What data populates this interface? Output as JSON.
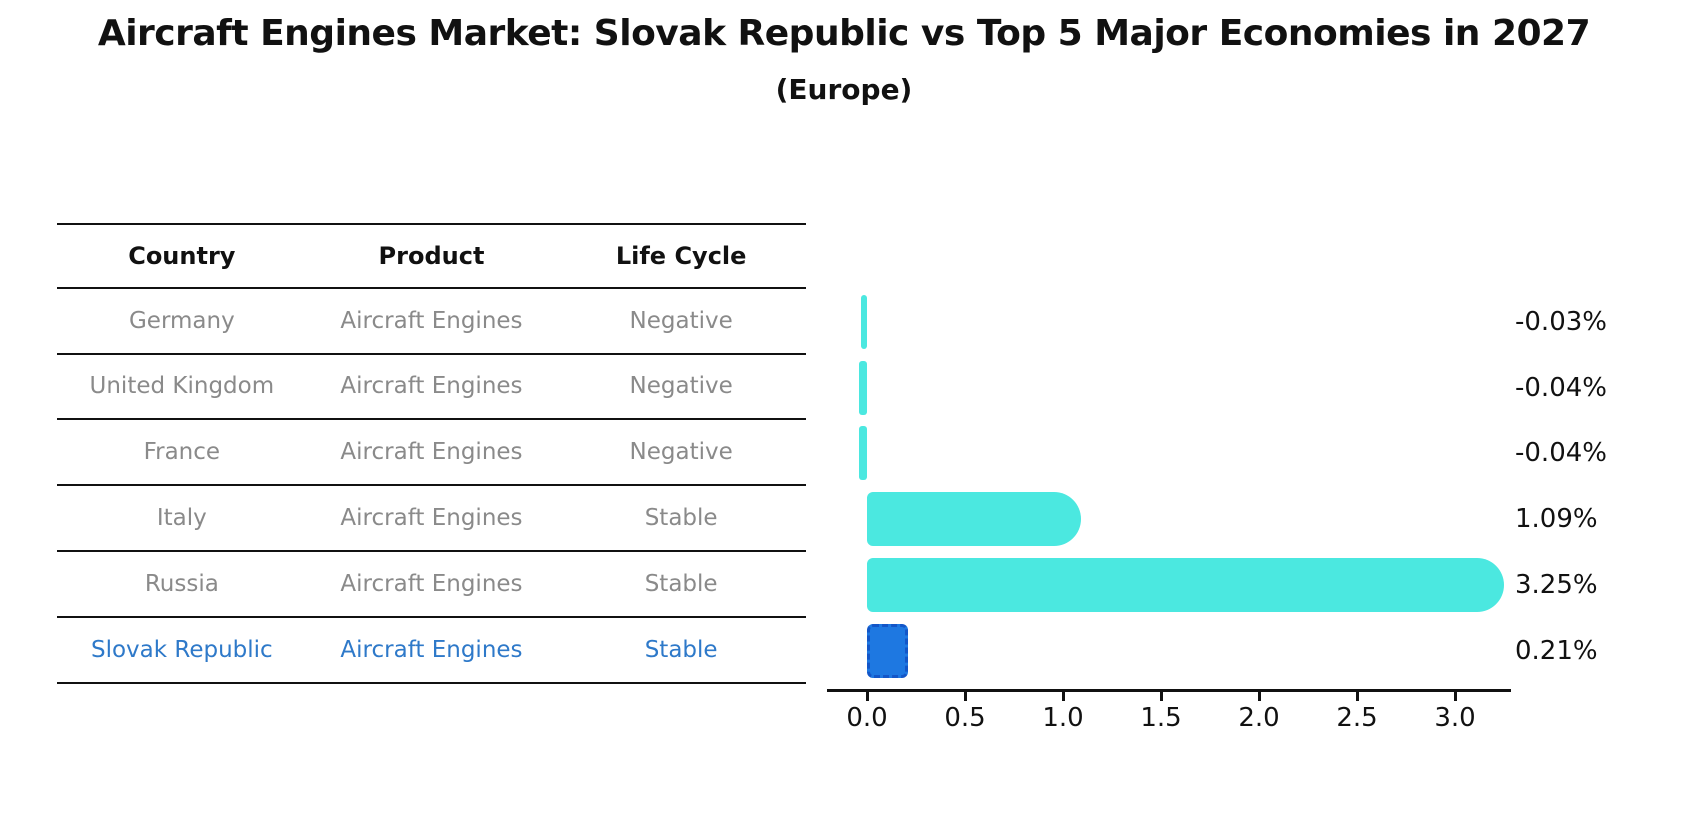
{
  "figure": {
    "title": "Aircraft Engines Market: Slovak Republic vs Top 5 Major Economies in 2027",
    "subtitle": "(Europe)"
  },
  "table": {
    "headers": [
      "Country",
      "Product",
      "Life Cycle"
    ],
    "rows": [
      {
        "country": "Germany",
        "product": "Aircraft Engines",
        "life_cycle": "Negative",
        "highlight": false
      },
      {
        "country": "United Kingdom",
        "product": "Aircraft Engines",
        "life_cycle": "Negative",
        "highlight": false
      },
      {
        "country": "France",
        "product": "Aircraft Engines",
        "life_cycle": "Negative",
        "highlight": false
      },
      {
        "country": "Italy",
        "product": "Aircraft Engines",
        "life_cycle": "Stable",
        "highlight": false
      },
      {
        "country": "Russia",
        "product": "Aircraft Engines",
        "life_cycle": "Stable",
        "highlight": false
      },
      {
        "country": "Slovak Republic",
        "product": "Aircraft Engines",
        "life_cycle": "Stable",
        "highlight": true
      }
    ]
  },
  "chart_data": {
    "type": "bar",
    "orientation": "horizontal",
    "title": "Aircraft Engines Market: Slovak Republic vs Top 5 Major Economies in 2027 (Europe)",
    "categories": [
      "Germany",
      "United Kingdom",
      "France",
      "Italy",
      "Russia",
      "Slovak Republic"
    ],
    "values": [
      -0.03,
      -0.04,
      -0.04,
      1.09,
      3.25,
      0.21
    ],
    "value_labels": [
      "-0.03%",
      "-0.04%",
      "-0.04%",
      "1.09%",
      "3.25%",
      "0.21%"
    ],
    "highlight_index": 5,
    "x_ticks": [
      0.0,
      0.5,
      1.0,
      1.5,
      2.0,
      2.5,
      3.0
    ],
    "x_tick_labels": [
      "0.0",
      "0.5",
      "1.0",
      "1.5",
      "2.0",
      "2.5",
      "3.0"
    ],
    "xlim": [
      -0.2,
      3.3
    ],
    "xlabel": "",
    "ylabel": "",
    "grid": false,
    "legend": false
  },
  "colors": {
    "bar_default": "#4BE8E0",
    "bar_highlight_fill": "#1E78E1",
    "bar_highlight_edge": "#1356C8",
    "table_text": "#8A8A8A",
    "table_highlight_text": "#2E79C9",
    "text": "#111111"
  }
}
